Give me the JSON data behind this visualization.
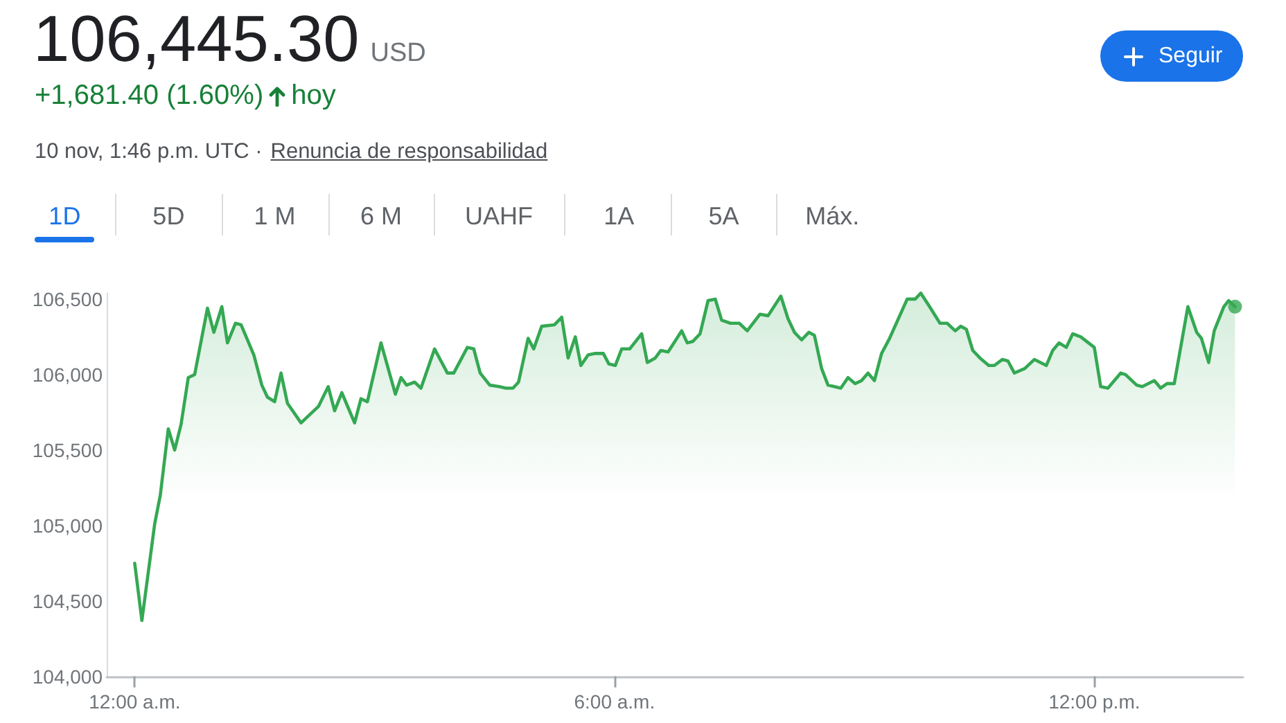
{
  "chart_data": {
    "type": "area",
    "title": "106,445.30",
    "subtitle": "+1,681.40 (1.60%)",
    "annotations": [
      "USD",
      "hoy",
      "10 nov, 1:46 p.m. UTC ·",
      "Renuncia de responsabilidad",
      "1D",
      "5D",
      "1 M",
      "6 M",
      "UAHF",
      "1A",
      "5A",
      "Máx.",
      "Seguir"
    ],
    "xlim": [
      -0.35,
      13.86
    ],
    "xticks": [
      {
        "value": 0,
        "label": "12:00 a.m."
      },
      {
        "value": 6,
        "label": "6:00 a.m."
      },
      {
        "value": 12,
        "label": "12:00 p.m."
      }
    ],
    "ylim": [
      104000,
      106540
    ],
    "yticks": [
      {
        "value": 104000,
        "label": "104,000"
      },
      {
        "value": 104500,
        "label": "104,500"
      },
      {
        "value": 105000,
        "label": "105,000"
      },
      {
        "value": 105500,
        "label": "105,500"
      },
      {
        "value": 106000,
        "label": "106,000"
      },
      {
        "value": 106500,
        "label": "106,500"
      }
    ],
    "series": [
      {
        "color": "#34a853",
        "x": [
          0,
          0.09,
          0.25,
          0.32,
          0.42,
          0.5,
          0.58,
          0.67,
          0.75,
          0.91,
          0.99,
          1.09,
          1.16,
          1.26,
          1.33,
          1.49,
          1.59,
          1.66,
          1.75,
          1.83,
          1.91,
          2.08,
          2.3,
          2.42,
          2.5,
          2.59,
          2.75,
          2.83,
          2.91,
          3.08,
          3.26,
          3.33,
          3.4,
          3.5,
          3.58,
          3.75,
          3.91,
          3.99,
          4.16,
          4.24,
          4.32,
          4.44,
          4.56,
          4.64,
          4.73,
          4.8,
          4.92,
          4.99,
          5.09,
          5.25,
          5.34,
          5.42,
          5.51,
          5.58,
          5.67,
          5.76,
          5.86,
          5.93,
          6.01,
          6.09,
          6.19,
          6.34,
          6.41,
          6.51,
          6.58,
          6.67,
          6.84,
          6.91,
          6.98,
          7.07,
          7.17,
          7.26,
          7.34,
          7.45,
          7.56,
          7.66,
          7.82,
          7.92,
          8.08,
          8.17,
          8.25,
          8.34,
          8.43,
          8.5,
          8.59,
          8.67,
          8.83,
          8.92,
          9.01,
          9.09,
          9.17,
          9.25,
          9.34,
          9.44,
          9.66,
          9.76,
          9.83,
          9.94,
          10.07,
          10.16,
          10.26,
          10.33,
          10.4,
          10.48,
          10.57,
          10.68,
          10.75,
          10.85,
          10.92,
          11,
          11.13,
          11.25,
          11.4,
          11.48,
          11.56,
          11.65,
          11.73,
          11.83,
          12,
          12.08,
          12.17,
          12.33,
          12.39,
          12.53,
          12.6,
          12.75,
          12.83,
          12.91,
          13,
          13.17,
          13.28,
          13.34,
          13.43,
          13.5,
          13.62,
          13.68,
          13.76
        ],
        "values": [
          104750,
          104370,
          105010,
          105200,
          105640,
          105500,
          105670,
          105980,
          106000,
          106440,
          106280,
          106450,
          106210,
          106340,
          106330,
          106130,
          105930,
          105850,
          105820,
          106010,
          105810,
          105680,
          105790,
          105920,
          105760,
          105880,
          105680,
          105840,
          105820,
          106210,
          105870,
          105980,
          105930,
          105950,
          105910,
          106170,
          106010,
          106010,
          106180,
          106170,
          106010,
          105930,
          105920,
          105910,
          105910,
          105950,
          106240,
          106170,
          106320,
          106330,
          106380,
          106110,
          106250,
          106060,
          106130,
          106140,
          106140,
          106070,
          106060,
          106170,
          106170,
          106270,
          106080,
          106110,
          106160,
          106150,
          106290,
          106210,
          106220,
          106270,
          106490,
          106500,
          106360,
          106340,
          106340,
          106290,
          106400,
          106390,
          106520,
          106370,
          106280,
          106230,
          106280,
          106260,
          106040,
          105930,
          105910,
          105980,
          105940,
          105960,
          106010,
          105960,
          106140,
          106240,
          106500,
          106500,
          106540,
          106450,
          106340,
          106340,
          106290,
          106320,
          106300,
          106160,
          106110,
          106060,
          106060,
          106100,
          106090,
          106010,
          106040,
          106100,
          106060,
          106160,
          106210,
          106180,
          106270,
          106250,
          106180,
          105920,
          105910,
          106010,
          106000,
          105930,
          105920,
          105960,
          105910,
          105940,
          105940,
          106450,
          106280,
          106240,
          106080,
          106290,
          106450,
          106490,
          106450
        ]
      },
      {
        "type": "scatter",
        "color": "#34a853",
        "x": [
          13.76
        ],
        "values": [
          106450
        ]
      }
    ]
  }
}
